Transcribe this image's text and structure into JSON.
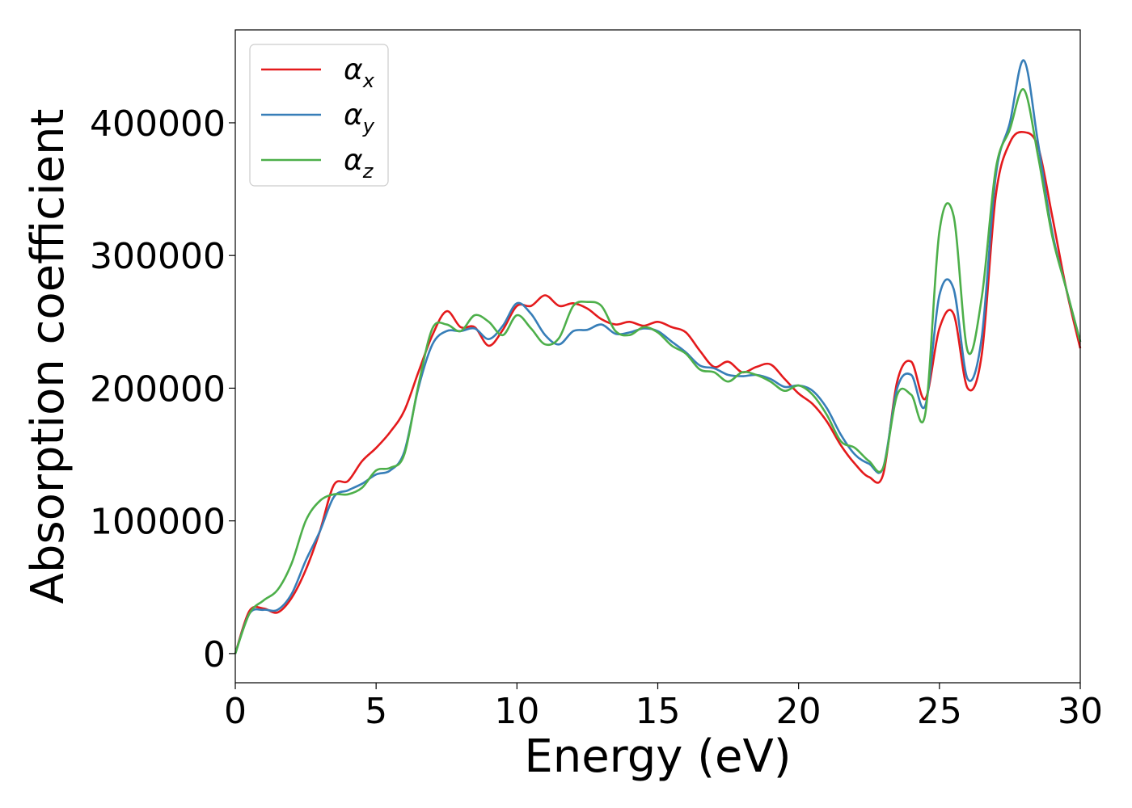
{
  "chart_data": {
    "type": "line",
    "xlabel": "Energy (eV)",
    "ylabel": "Absorption coefficient",
    "xlim": [
      0,
      30
    ],
    "ylim": [
      -22000,
      470000
    ],
    "xticks": [
      0,
      5,
      10,
      15,
      20,
      25,
      30
    ],
    "yticks": [
      0,
      100000,
      200000,
      300000,
      400000
    ],
    "xtick_labels": [
      "0",
      "5",
      "10",
      "15",
      "20",
      "25",
      "30"
    ],
    "ytick_labels": [
      "0",
      "100000",
      "200000",
      "300000",
      "400000"
    ],
    "grid": false,
    "legend_position": "top-left",
    "series": [
      {
        "name": "α",
        "subscript": "x",
        "color": "#e41a1c",
        "x": [
          0,
          0.5,
          1,
          1.5,
          2,
          2.5,
          3,
          3.5,
          4,
          4.5,
          5,
          5.5,
          6,
          6.5,
          7,
          7.5,
          8,
          8.5,
          9,
          9.5,
          10,
          10.5,
          11,
          11.5,
          12,
          12.5,
          13,
          13.5,
          14,
          14.5,
          15,
          15.5,
          16,
          16.5,
          17,
          17.5,
          18,
          18.5,
          19,
          19.5,
          20,
          20.5,
          21,
          21.5,
          22,
          22.5,
          23,
          23.5,
          24,
          24.5,
          25,
          25.5,
          26,
          26.5,
          27,
          27.5,
          28,
          28.5,
          29,
          29.5,
          30
        ],
        "y": [
          0,
          32000,
          34000,
          31000,
          42000,
          63000,
          92000,
          127000,
          130000,
          145000,
          155000,
          167000,
          183000,
          212000,
          240000,
          258000,
          246000,
          246000,
          232000,
          244000,
          262000,
          262000,
          270000,
          262000,
          264000,
          260000,
          252000,
          248000,
          250000,
          247000,
          250000,
          246000,
          242000,
          228000,
          216000,
          220000,
          212000,
          216000,
          218000,
          207000,
          196000,
          188000,
          175000,
          157000,
          143000,
          133000,
          135000,
          205000,
          220000,
          192000,
          245000,
          256000,
          200000,
          225000,
          345000,
          385000,
          393000,
          382000,
          330000,
          275000,
          230000
        ]
      },
      {
        "name": "α",
        "subscript": "y",
        "color": "#377eb8",
        "x": [
          0,
          0.5,
          1,
          1.5,
          2,
          2.5,
          3,
          3.5,
          4,
          4.5,
          5,
          5.5,
          6,
          6.5,
          7,
          7.5,
          8,
          8.5,
          9,
          9.5,
          10,
          10.5,
          11,
          11.5,
          12,
          12.5,
          13,
          13.5,
          14,
          14.5,
          15,
          15.5,
          16,
          16.5,
          17,
          17.5,
          18,
          18.5,
          19,
          19.5,
          20,
          20.5,
          21,
          21.5,
          22,
          22.5,
          23,
          23.5,
          24,
          24.5,
          25,
          25.5,
          26,
          26.5,
          27,
          27.5,
          28,
          28.5,
          29,
          29.5,
          30
        ],
        "y": [
          0,
          30000,
          33000,
          33000,
          45000,
          70000,
          92000,
          118000,
          123000,
          128000,
          135000,
          138000,
          152000,
          200000,
          233000,
          243000,
          243000,
          245000,
          237000,
          247000,
          264000,
          256000,
          240000,
          233000,
          243000,
          244000,
          248000,
          241000,
          242000,
          245000,
          243000,
          235000,
          227000,
          217000,
          215000,
          210000,
          209000,
          210000,
          207000,
          201000,
          202000,
          198000,
          185000,
          165000,
          150000,
          143000,
          140000,
          200000,
          210000,
          187000,
          270000,
          275000,
          207000,
          238000,
          360000,
          400000,
          447000,
          385000,
          318000,
          275000,
          235000
        ]
      },
      {
        "name": "α",
        "subscript": "z",
        "color": "#4daf4a",
        "x": [
          0,
          0.5,
          1,
          1.5,
          2,
          2.5,
          3,
          3.5,
          4,
          4.5,
          5,
          5.5,
          6,
          6.5,
          7,
          7.5,
          8,
          8.5,
          9,
          9.5,
          10,
          10.5,
          11,
          11.5,
          12,
          12.5,
          13,
          13.5,
          14,
          14.5,
          15,
          15.5,
          16,
          16.5,
          17,
          17.5,
          18,
          18.5,
          19,
          19.5,
          20,
          20.5,
          21,
          21.5,
          22,
          22.5,
          23,
          23.5,
          24,
          24.5,
          25,
          25.5,
          26,
          26.5,
          27,
          27.5,
          28,
          28.5,
          29,
          29.5,
          30
        ],
        "y": [
          0,
          30000,
          40000,
          48000,
          68000,
          100000,
          115000,
          120000,
          120000,
          125000,
          138000,
          140000,
          150000,
          202000,
          245000,
          248000,
          243000,
          255000,
          250000,
          240000,
          255000,
          245000,
          233000,
          238000,
          262000,
          265000,
          262000,
          243000,
          240000,
          246000,
          242000,
          232000,
          226000,
          214000,
          212000,
          205000,
          212000,
          210000,
          205000,
          198000,
          202000,
          195000,
          180000,
          160000,
          155000,
          145000,
          140000,
          195000,
          195000,
          181000,
          318000,
          330000,
          228000,
          268000,
          365000,
          395000,
          425000,
          375000,
          315000,
          275000,
          235000
        ]
      }
    ]
  }
}
